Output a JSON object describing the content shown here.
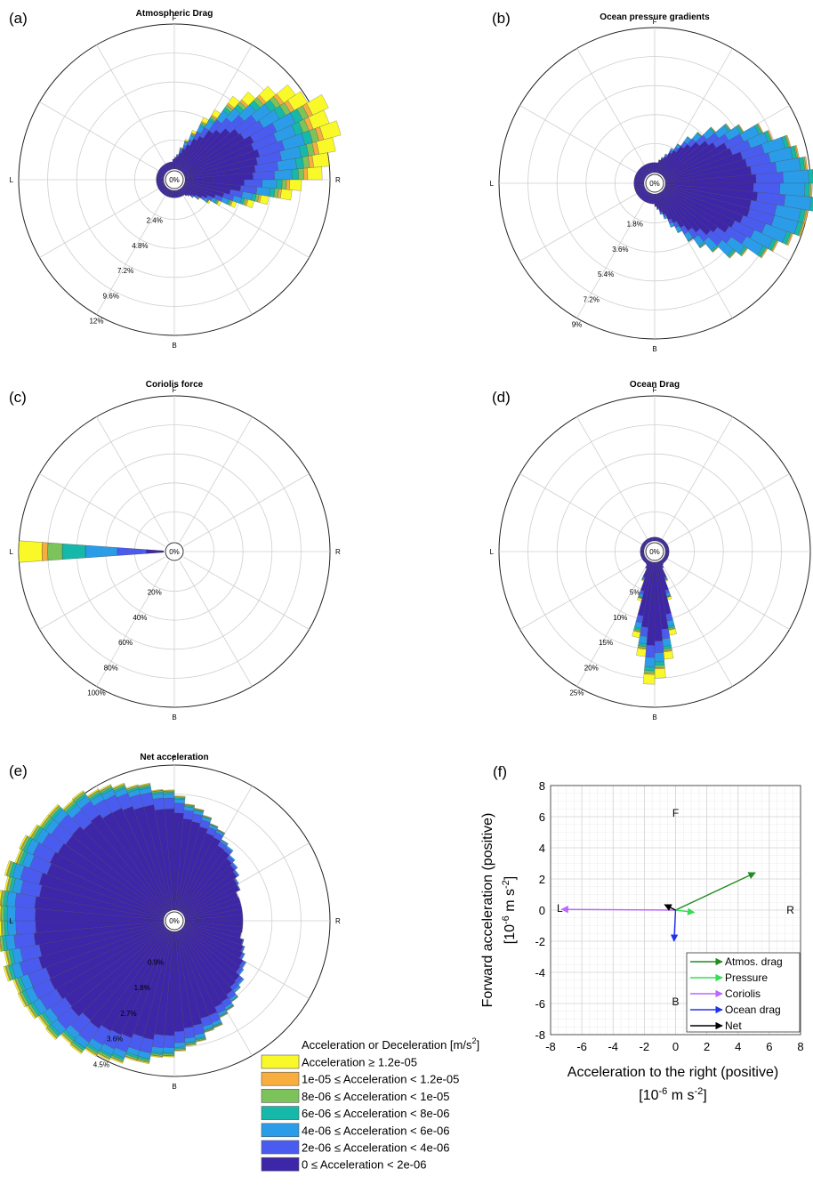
{
  "colors": {
    "bins": [
      "#3e26a8",
      "#4a5cf0",
      "#2b9de8",
      "#16b9a9",
      "#7cc35c",
      "#f7ae3e",
      "#f9f92a"
    ],
    "grid": "#cfcfcf",
    "axis": "#000000",
    "atmos": "#228b22",
    "pressure": "#33dd55",
    "coriolis": "#bb66ff",
    "ocean": "#2233ee",
    "net": "#000000"
  },
  "legend": {
    "title": "Acceleration or Deceleration [m/s",
    "title_sup": "2",
    "title_end": "]",
    "items": [
      "Acceleration ≥ 1.2e-05",
      "1e-05 ≤ Acceleration < 1.2e-05",
      "8e-06 ≤ Acceleration < 1e-05",
      "6e-06 ≤ Acceleration < 8e-06",
      "4e-06 ≤ Acceleration < 6e-06",
      "2e-06 ≤ Acceleration < 4e-06",
      "0 ≤ Acceleration < 2e-06"
    ]
  },
  "chart_data": [
    {
      "type": "polar-histogram",
      "panel": "(a)",
      "title": "Atmospheric Drag",
      "directions": {
        "top": "F",
        "right": "R",
        "bottom": "B",
        "left": "L"
      },
      "zero_label": "0%",
      "rmax": 12,
      "rings": [
        2.4,
        4.8,
        7.2,
        9.6,
        12
      ],
      "ring_labels": [
        "2.4%",
        "4.8%",
        "7.2%",
        "9.6%",
        "12%"
      ],
      "lobe": {
        "center_deg": 70,
        "width_deg": 150,
        "peak": 13.5,
        "min": 1.6,
        "shape": 2.2,
        "ripple": 0.06
      },
      "bin_fractions": [
        0.48,
        0.16,
        0.13,
        0.05,
        0.04,
        0.03,
        0.11
      ]
    },
    {
      "type": "polar-histogram",
      "panel": "(b)",
      "title": "Ocean pressure gradients",
      "directions": {
        "top": "F",
        "right": "R",
        "bottom": "B",
        "left": "L"
      },
      "zero_label": "0%",
      "rmax": 9,
      "rings": [
        1.8,
        3.6,
        5.4,
        7.2,
        9
      ],
      "ring_labels": [
        "1.8%",
        "3.6%",
        "5.4%",
        "7.2%",
        "9%"
      ],
      "lobe": {
        "center_deg": 95,
        "width_deg": 170,
        "peak": 9.6,
        "min": 1.3,
        "shape": 1.8,
        "ripple": 0.05
      },
      "bin_fractions": [
        0.6,
        0.18,
        0.17,
        0.03,
        0.01,
        0.01,
        0
      ]
    },
    {
      "type": "polar-histogram",
      "panel": "(c)",
      "title": "Coriolis force",
      "directions": {
        "top": "F",
        "right": "R",
        "bottom": "B",
        "left": "L"
      },
      "zero_label": "0%",
      "rmax": 100,
      "rings": [
        20,
        40,
        60,
        80,
        100
      ],
      "ring_labels": [
        "20%",
        "40%",
        "60%",
        "80%",
        "100%"
      ],
      "lobe": {
        "center_deg": 270,
        "width_deg": 8,
        "peak": 100,
        "min": 0,
        "shape": 1,
        "ripple": 0
      },
      "bin_fractions": [
        0.12,
        0.2,
        0.22,
        0.16,
        0.1,
        0.04,
        0.16
      ]
    },
    {
      "type": "polar-histogram",
      "panel": "(d)",
      "title": "Ocean Drag",
      "directions": {
        "top": "F",
        "right": "R",
        "bottom": "B",
        "left": "L"
      },
      "zero_label": "0%",
      "rmax": 25,
      "rings": [
        5,
        10,
        15,
        20,
        25
      ],
      "ring_labels": [
        "5%",
        "10%",
        "15%",
        "20%",
        "25%"
      ],
      "lobe": {
        "center_deg": 180,
        "width_deg": 70,
        "peak": 21.5,
        "min": 1.2,
        "shape": 3.0,
        "ripple": 0.12
      },
      "bin_fractions": [
        0.68,
        0.1,
        0.08,
        0.03,
        0.02,
        0.01,
        0.08
      ]
    },
    {
      "type": "polar-histogram",
      "panel": "(e)",
      "title": "Net acceleration",
      "directions": {
        "top": "F",
        "right": "R",
        "bottom": "B",
        "left": "L"
      },
      "zero_label": "0%",
      "rmax": 4.5,
      "rings": [
        0.9,
        1.8,
        2.7,
        3.6,
        4.5
      ],
      "ring_labels": [
        "0.9%",
        "1.8%",
        "2.7%",
        "3.6%",
        "4.5%"
      ],
      "lobe": {
        "center_deg": 265,
        "width_deg": 330,
        "peak": 5.1,
        "min": 2.3,
        "shape": 1.2,
        "ripple": 0.03
      },
      "bin_fractions": [
        0.78,
        0.12,
        0.05,
        0.02,
        0.015,
        0.005,
        0.01
      ]
    },
    {
      "type": "vector",
      "panel": "(f)",
      "xlabel": "Acceleration to the right (positive)",
      "xunit_pre": "[10",
      "xunit_exp": "-6",
      "xunit_mid": " m s",
      "xunit_exp2": "-2",
      "xunit_post": "]",
      "ylabel": "Forward acceleration (positive)",
      "yunit_pre": "[10",
      "yunit_exp": "-6",
      "yunit_mid": " m s",
      "yunit_exp2": "-2",
      "yunit_post": "]",
      "xlim": [
        -8,
        8
      ],
      "ylim": [
        -8,
        8
      ],
      "xticks": [
        -8,
        -6,
        -4,
        -2,
        0,
        2,
        4,
        6,
        8
      ],
      "yticks": [
        -8,
        -6,
        -4,
        -2,
        0,
        2,
        4,
        6,
        8
      ],
      "direction_labels": {
        "F": "F",
        "R": "R",
        "B": "B",
        "L": "L"
      },
      "series": [
        {
          "name": "Atmos. drag",
          "x": 5.1,
          "y": 2.4
        },
        {
          "name": "Pressure",
          "x": 1.2,
          "y": -0.15
        },
        {
          "name": "Coriolis",
          "x": -7.3,
          "y": 0.05
        },
        {
          "name": "Ocean drag",
          "x": -0.1,
          "y": -2.0
        },
        {
          "name": "Net",
          "x": -0.7,
          "y": 0.35
        }
      ]
    }
  ]
}
